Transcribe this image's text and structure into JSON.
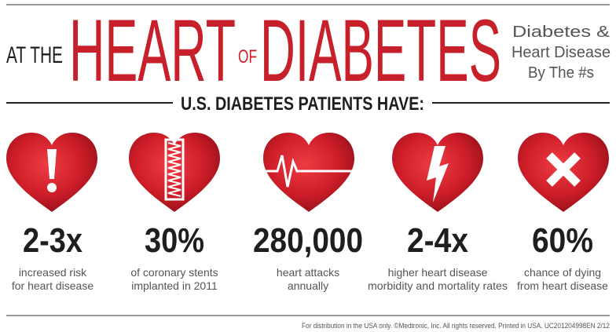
{
  "header": {
    "title_prefix": "AT THE",
    "title_heart": "HEART",
    "title_of": "OF",
    "title_diabetes": "DIABETES",
    "tagline": [
      "Diabetes &",
      "Heart Disease",
      "By The #s"
    ]
  },
  "section": {
    "heading": "U.S. DIABETES PATIENTS HAVE:",
    "items": [
      {
        "stat": "2-3x",
        "description": [
          "increased risk",
          "for heart disease"
        ]
      },
      {
        "stat": "30%",
        "description": [
          "of coronary stents",
          "implanted in 2011"
        ]
      },
      {
        "stat": "280,000",
        "description": [
          "heart attacks",
          "annually"
        ]
      },
      {
        "stat": "2-4x",
        "description": [
          "higher heart disease",
          "morbidity and mortality rates"
        ]
      },
      {
        "stat": "60%",
        "description": [
          "chance of dying",
          "from heart disease"
        ]
      }
    ]
  },
  "footer": {
    "text": "For distribution in the USA only. ©Medtronic, Inc. All rights reserved. Printed in USA. UC201204998EN 2/12"
  }
}
